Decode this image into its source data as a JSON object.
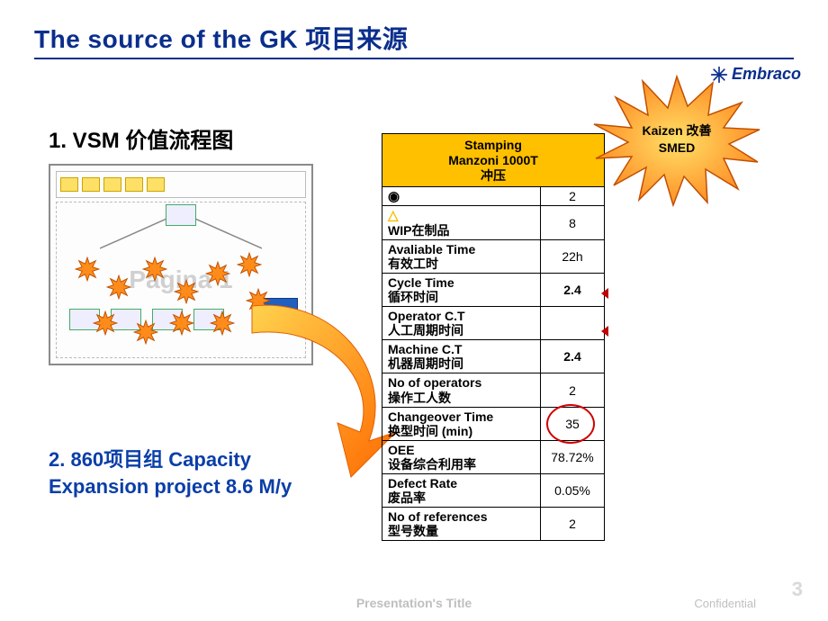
{
  "title": "The source of the GK 项目来源",
  "logo_text": "Embraco",
  "section1": "1. VSM  价值流程图",
  "section2": "2. 860项目组 Capacity Expansion project 8.6 M/y",
  "vsm_watermark": "Página 1",
  "starburst": {
    "line1": "Kaizen  改善",
    "line2": "SMED"
  },
  "data_table": {
    "header": {
      "l1": "Stamping",
      "l2": "Manzoni 1000T",
      "l3": "冲压"
    },
    "rows": [
      {
        "label_sym": "◉",
        "label": "",
        "value": "2"
      },
      {
        "label_sym": "△",
        "label": "WIP在制品",
        "value": "8"
      },
      {
        "label": "Avaliable Time\n有效工时",
        "value": "22h"
      },
      {
        "label": "Cycle Time\n循环时间",
        "value": "2.4",
        "bold": true
      },
      {
        "label": "Operator C.T\n人工周期时间",
        "value": ""
      },
      {
        "label": "Machine C.T\n机器周期时间",
        "value": "2.4",
        "bold": true
      },
      {
        "label": "No of operators\n操作工人数",
        "value": "2"
      },
      {
        "label": "Changeover Time\n换型时间 (min)",
        "value": "35",
        "circle": true
      },
      {
        "label": "OEE\n设备综合利用率",
        "value": "78.72%"
      },
      {
        "label": "Defect Rate\n废品率",
        "value": "0.05%"
      },
      {
        "label": "No of references\n型号数量",
        "value": "2"
      }
    ]
  },
  "colors": {
    "title": "#0a2e8c",
    "accent": "#0a3ea8",
    "table_header_bg": "#ffc000",
    "burst_fill": "#ff8c1a",
    "burst_stroke": "#c05000",
    "circle": "#d00000",
    "arrow": "#ff7f00",
    "footer": "#bfbfbf"
  },
  "footer": {
    "title": "Presentation's Title",
    "conf": "Confidential",
    "page": "3"
  }
}
